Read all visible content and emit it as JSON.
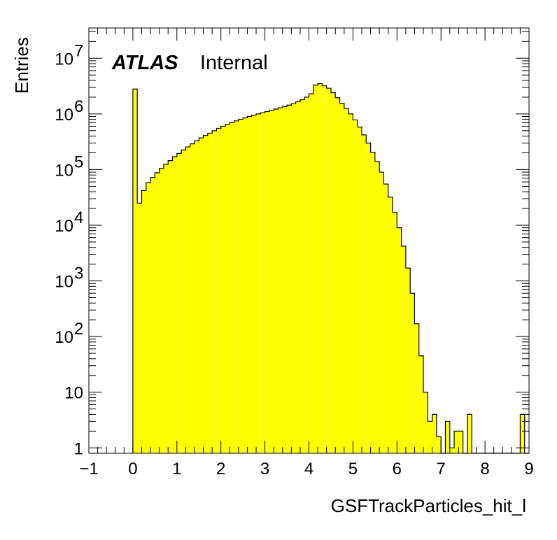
{
  "chart_data": {
    "type": "histogram",
    "title": "",
    "xlabel": "GSFTrackParticles_hit_l",
    "ylabel": "Entries",
    "xlim": [
      -1,
      9
    ],
    "ylim": [
      0.8,
      35000000
    ],
    "yscale": "log",
    "fill_color": "#ffff00",
    "line_color": "#000000",
    "x_ticks": [
      "−1",
      "0",
      "1",
      "2",
      "3",
      "4",
      "5",
      "6",
      "7",
      "8",
      "9"
    ],
    "y_ticks": [
      {
        "base": "1",
        "exp": ""
      },
      {
        "base": "10",
        "exp": ""
      },
      {
        "base": "10",
        "exp": "2"
      },
      {
        "base": "10",
        "exp": "3"
      },
      {
        "base": "10",
        "exp": "4"
      },
      {
        "base": "10",
        "exp": "5"
      },
      {
        "base": "10",
        "exp": "6"
      },
      {
        "base": "10",
        "exp": "7"
      }
    ],
    "bin_width": 0.1,
    "bin_start": 0.0,
    "values": [
      2800000,
      25000,
      42000,
      58000,
      72000,
      88000,
      105000,
      125000,
      145000,
      170000,
      195000,
      225000,
      255000,
      290000,
      330000,
      370000,
      410000,
      450000,
      500000,
      550000,
      600000,
      650000,
      700000,
      750000,
      800000,
      850000,
      900000,
      950000,
      1000000,
      1050000,
      1100000,
      1160000,
      1220000,
      1290000,
      1360000,
      1440000,
      1530000,
      1650000,
      1800000,
      2000000,
      2300000,
      3300000,
      3500000,
      3200000,
      2900000,
      2400000,
      1950000,
      1550000,
      1250000,
      1000000,
      780000,
      580000,
      420000,
      300000,
      205000,
      140000,
      90000,
      55000,
      32000,
      17000,
      9000,
      4200,
      1700,
      600,
      170,
      45,
      10,
      3,
      4,
      1.6,
      0,
      3,
      1,
      2,
      2,
      0,
      4,
      0,
      0,
      0,
      0,
      0,
      0,
      0,
      0,
      0,
      0,
      0,
      4,
      0
    ],
    "annotations": {
      "experiment": "ATLAS",
      "status": "Internal"
    }
  }
}
